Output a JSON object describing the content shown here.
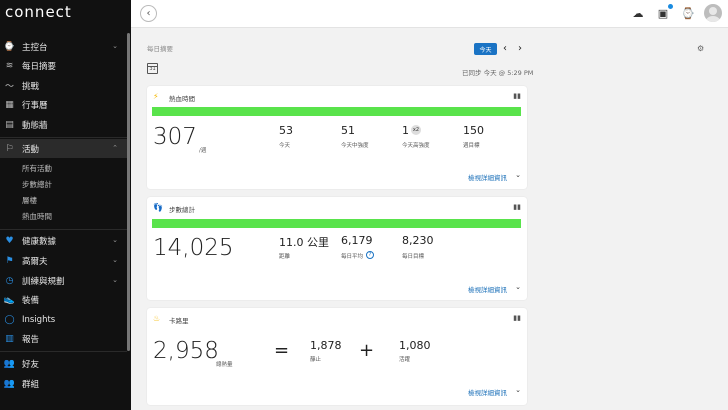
{
  "app": {
    "logo": "connect"
  },
  "sidebar": {
    "items": [
      {
        "label": "主控台",
        "icon": "⌚"
      },
      {
        "label": "每日摘要",
        "icon": "≋"
      },
      {
        "label": "挑戰",
        "icon": "〜"
      },
      {
        "label": "行事曆",
        "icon": "▦"
      },
      {
        "label": "動態牆",
        "icon": "▤"
      },
      {
        "label": "活動",
        "icon": "⚐"
      },
      {
        "label": "健康數據",
        "icon": "♥"
      },
      {
        "label": "高爾夫",
        "icon": "⚑"
      },
      {
        "label": "訓練與規劃",
        "icon": "◷"
      },
      {
        "label": "裝備",
        "icon": "👟"
      },
      {
        "label": "Insights",
        "icon": "◯"
      },
      {
        "label": "報告",
        "icon": "▥"
      },
      {
        "label": "好友",
        "icon": "👥"
      },
      {
        "label": "群組",
        "icon": "👥"
      }
    ],
    "activity_sub": [
      "所有活動",
      "步數總計",
      "層樓",
      "熱血時間"
    ],
    "chevron": "⌄",
    "chevron_up": "⌃"
  },
  "topbar": {
    "back": "‹",
    "upload_icon": "☁",
    "inbox_icon": "▣",
    "watch_icon": "⌚"
  },
  "header": {
    "title": "每日摘要",
    "today_button": "今天",
    "prev": "‹",
    "next": "›",
    "synced": "已同步 今天 @ 5:29 PM",
    "calendar_day": "31",
    "gear": "⚙"
  },
  "cards": {
    "intensity": {
      "title": "熱血時間",
      "progress": 1.0,
      "total": "307",
      "total_unit": "/週",
      "stats": [
        {
          "value": "53",
          "label": "今天"
        },
        {
          "value": "51",
          "label": "今天中強度"
        },
        {
          "value": "1",
          "label": "今天高強度"
        },
        {
          "value": "150",
          "label": "週目標"
        }
      ],
      "badge": "x2",
      "more": "檢視詳細資訊"
    },
    "steps": {
      "title": "步數總計",
      "progress": 1.0,
      "total": "14,025",
      "stats": [
        {
          "value": "11.0 公里",
          "label": "距離"
        },
        {
          "value": "6,179",
          "label": "每日平均"
        },
        {
          "value": "8,230",
          "label": "每日目標"
        }
      ],
      "info": "?",
      "more": "檢視詳細資訊"
    },
    "calories": {
      "title": "卡路里",
      "total": "2,958",
      "total_label": "總熱量",
      "equals": "=",
      "plus": "+",
      "stats": [
        {
          "value": "1,878",
          "label": "靜止"
        },
        {
          "value": "1,080",
          "label": "活躍"
        }
      ],
      "more": "檢視詳細資訊"
    }
  },
  "colors": {
    "progress": "#59e34b",
    "accent": "#1a73c4",
    "sidebar": "#111111"
  }
}
